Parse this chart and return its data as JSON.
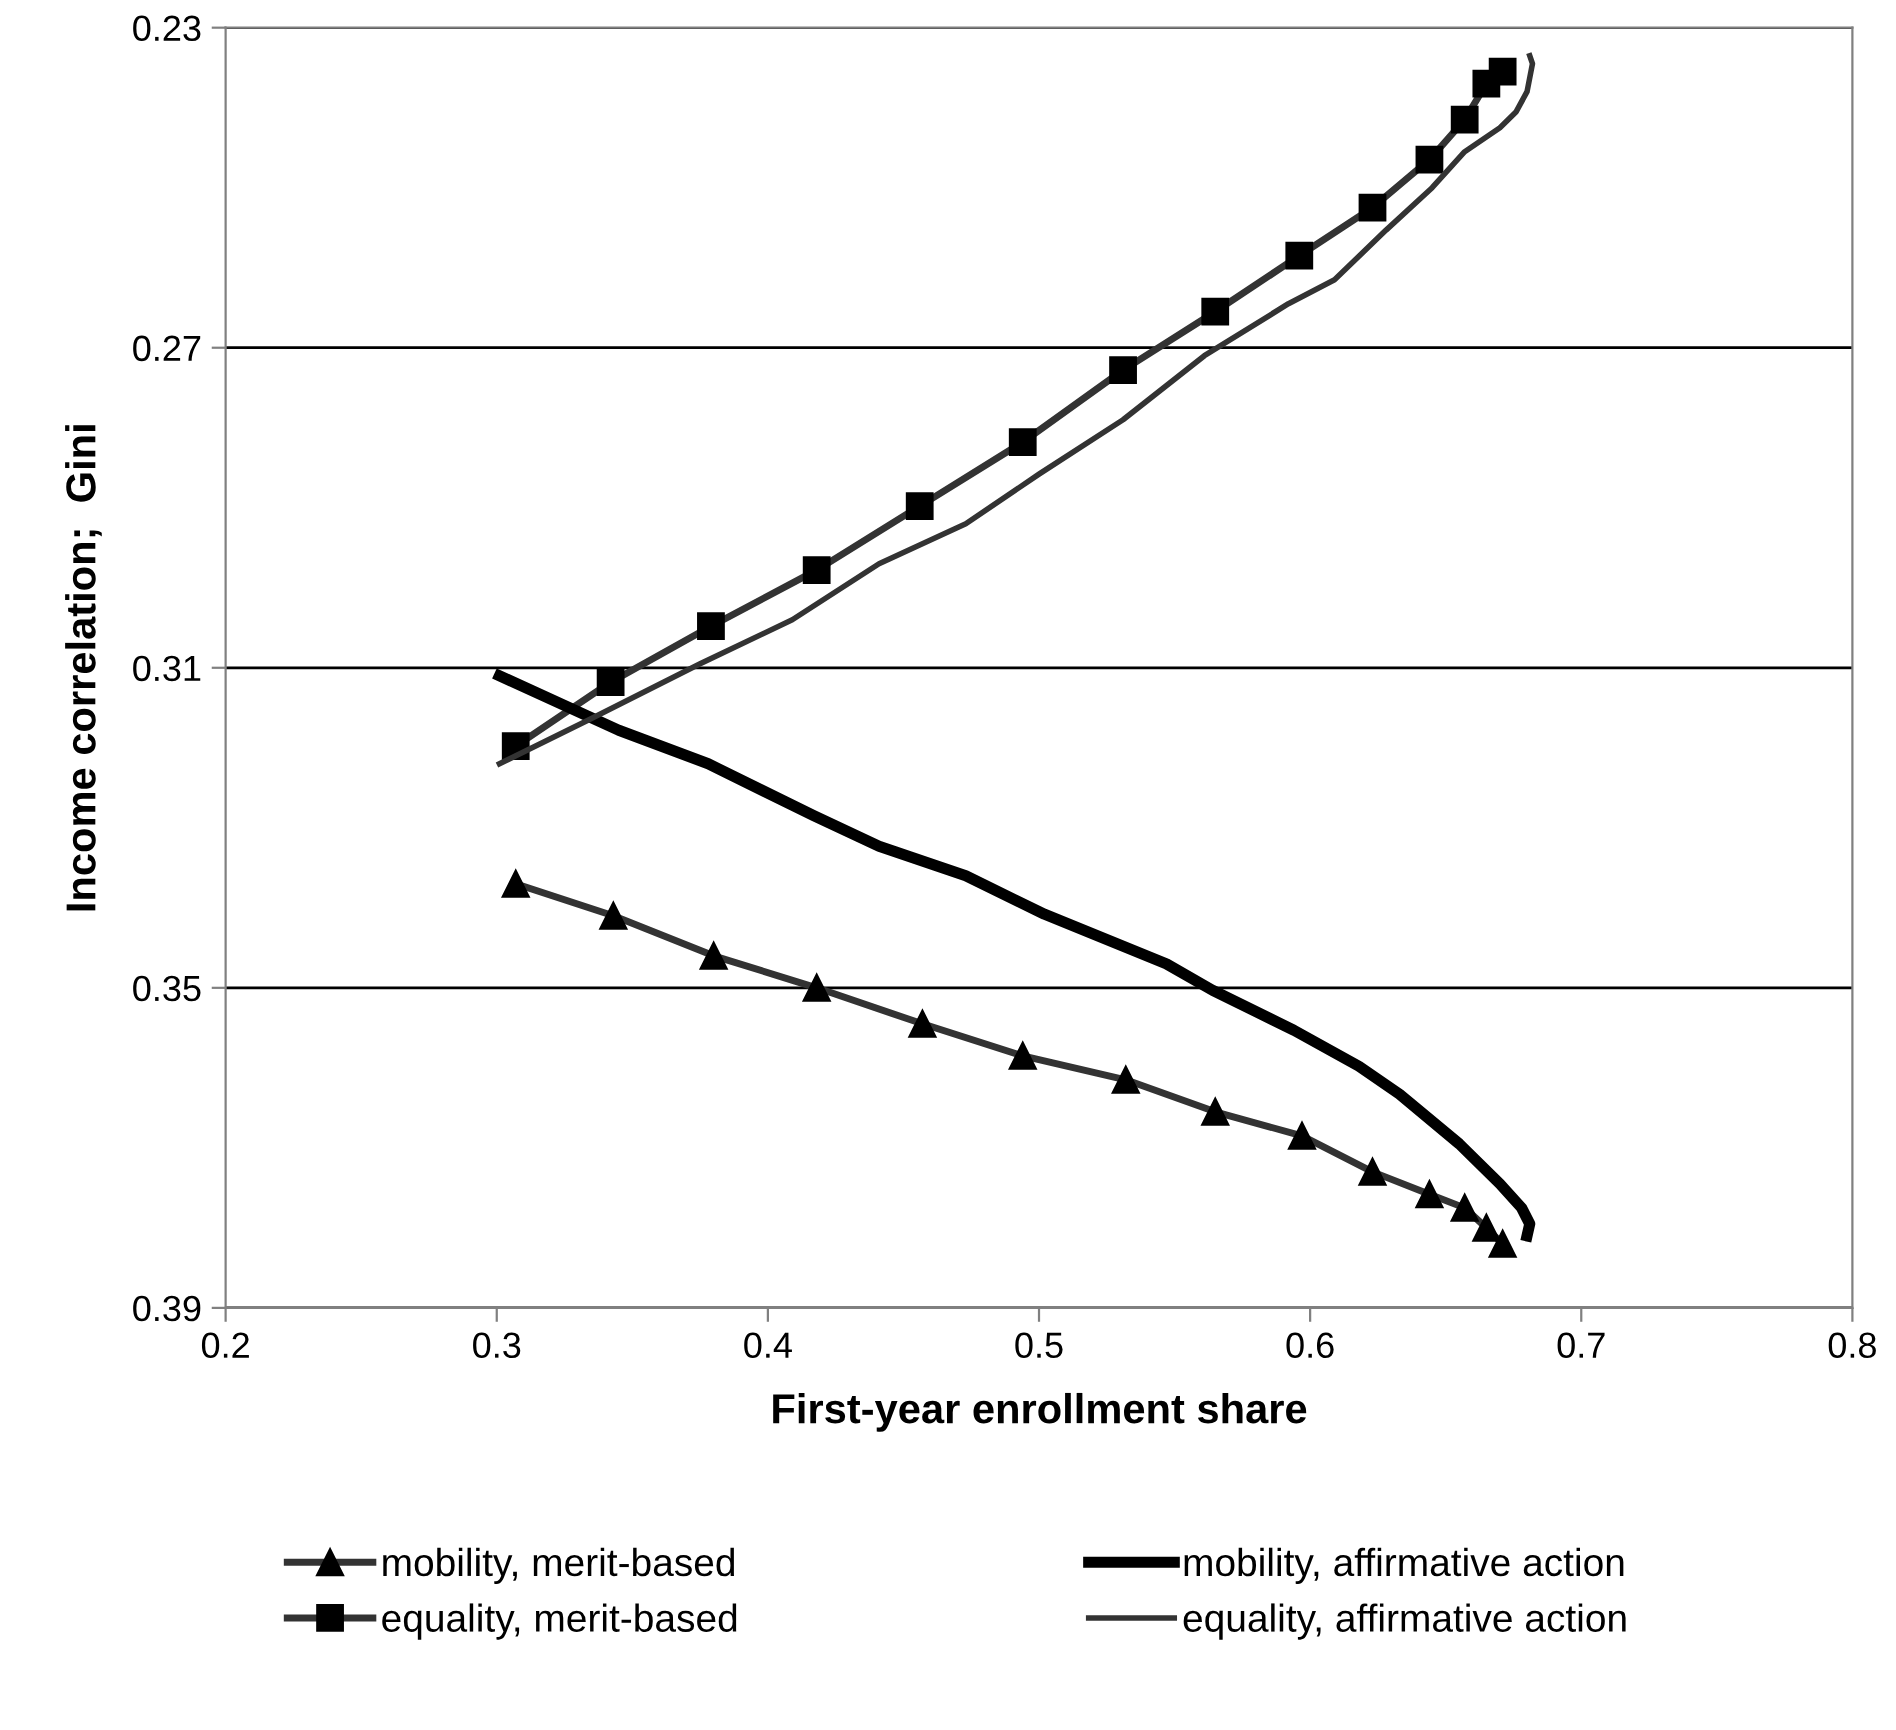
{
  "chart_data": {
    "type": "line",
    "xlabel": "First-year enrollment share",
    "ylabel": "Income correlation;  Gini",
    "xlim": [
      0.2,
      0.8
    ],
    "xticks": [
      0.2,
      0.3,
      0.4,
      0.5,
      0.6,
      0.7,
      0.8
    ],
    "ylim": [
      0.39,
      0.23
    ],
    "yticks": [
      0.23,
      0.27,
      0.31,
      0.35,
      0.39
    ],
    "grid": "y",
    "legend": "bottom",
    "series": [
      {
        "name": "mobility, merit-based",
        "color": "#333333",
        "marker": "triangle",
        "x": [
          0.307,
          0.343,
          0.38,
          0.418,
          0.457,
          0.494,
          0.532,
          0.565,
          0.597,
          0.623,
          0.644,
          0.657,
          0.665,
          0.671
        ],
        "values": [
          0.337,
          0.341,
          0.346,
          0.35,
          0.3545,
          0.3585,
          0.3615,
          0.3655,
          0.3685,
          0.373,
          0.3758,
          0.3775,
          0.38,
          0.382
        ]
      },
      {
        "name": "equality, merit-based",
        "color": "#333333",
        "marker": "square",
        "x": [
          0.307,
          0.342,
          0.379,
          0.418,
          0.456,
          0.494,
          0.531,
          0.565,
          0.596,
          0.623,
          0.644,
          0.657,
          0.665,
          0.671
        ],
        "values": [
          0.3198,
          0.3118,
          0.3048,
          0.2978,
          0.2898,
          0.2818,
          0.2728,
          0.2655,
          0.2585,
          0.2525,
          0.2465,
          0.2415,
          0.237,
          0.2355
        ]
      },
      {
        "name": "mobility, affirmative action",
        "color": "#000000",
        "x": [
          0.301,
          0.345,
          0.378,
          0.417,
          0.441,
          0.473,
          0.502,
          0.547,
          0.564,
          0.594,
          0.618,
          0.633,
          0.655,
          0.67,
          0.678,
          0.681,
          0.68
        ],
        "values": [
          0.311,
          0.3178,
          0.322,
          0.3285,
          0.3323,
          0.336,
          0.3408,
          0.347,
          0.3503,
          0.3553,
          0.3598,
          0.3633,
          0.3695,
          0.3745,
          0.3775,
          0.3795,
          0.381
        ]
      },
      {
        "name": "equality, affirmative action",
        "color": "#333333",
        "x": [
          0.301,
          0.334,
          0.375,
          0.409,
          0.441,
          0.473,
          0.5,
          0.531,
          0.561,
          0.592,
          0.609,
          0.628,
          0.645,
          0.657,
          0.67,
          0.676,
          0.68,
          0.682,
          0.681
        ],
        "values": [
          0.322,
          0.3165,
          0.3095,
          0.304,
          0.297,
          0.292,
          0.2858,
          0.279,
          0.271,
          0.2645,
          0.2615,
          0.2553,
          0.25,
          0.2455,
          0.2425,
          0.2405,
          0.238,
          0.2345,
          0.2335
        ]
      }
    ]
  }
}
